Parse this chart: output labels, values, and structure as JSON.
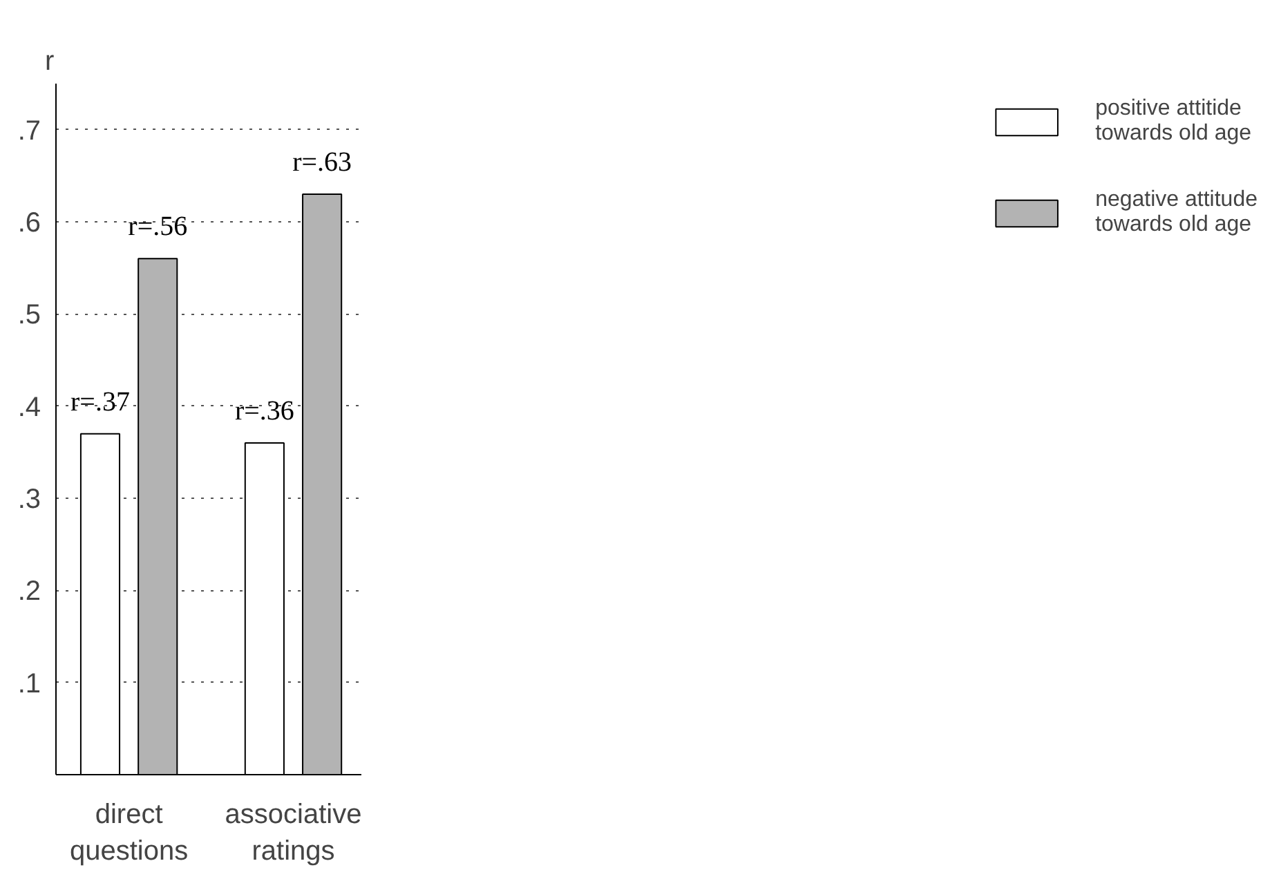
{
  "chart_data": {
    "type": "bar",
    "ylabel": "r",
    "categories": [
      "direct\nquestions",
      "associative\nratings"
    ],
    "series": [
      {
        "name": "positive attitide\ntowards old age",
        "color": "#ffffff",
        "values": [
          0.37,
          0.36
        ],
        "value_labels": [
          "r=.37",
          "r=.36"
        ]
      },
      {
        "name": "negative attitude\ntowards old age",
        "color": "#b3b3b3",
        "values": [
          0.56,
          0.63
        ],
        "value_labels": [
          "r=.56",
          "r=.63"
        ]
      }
    ],
    "ylim": [
      0,
      0.75
    ],
    "yticks": [
      {
        "value": 0.1,
        "label": ".1"
      },
      {
        "value": 0.2,
        "label": ".2"
      },
      {
        "value": 0.3,
        "label": ".3"
      },
      {
        "value": 0.4,
        "label": ".4"
      },
      {
        "value": 0.5,
        "label": ".5"
      },
      {
        "value": 0.6,
        "label": ".6"
      },
      {
        "value": 0.7,
        "label": ".7"
      }
    ],
    "grid": "y",
    "legend": "right"
  }
}
